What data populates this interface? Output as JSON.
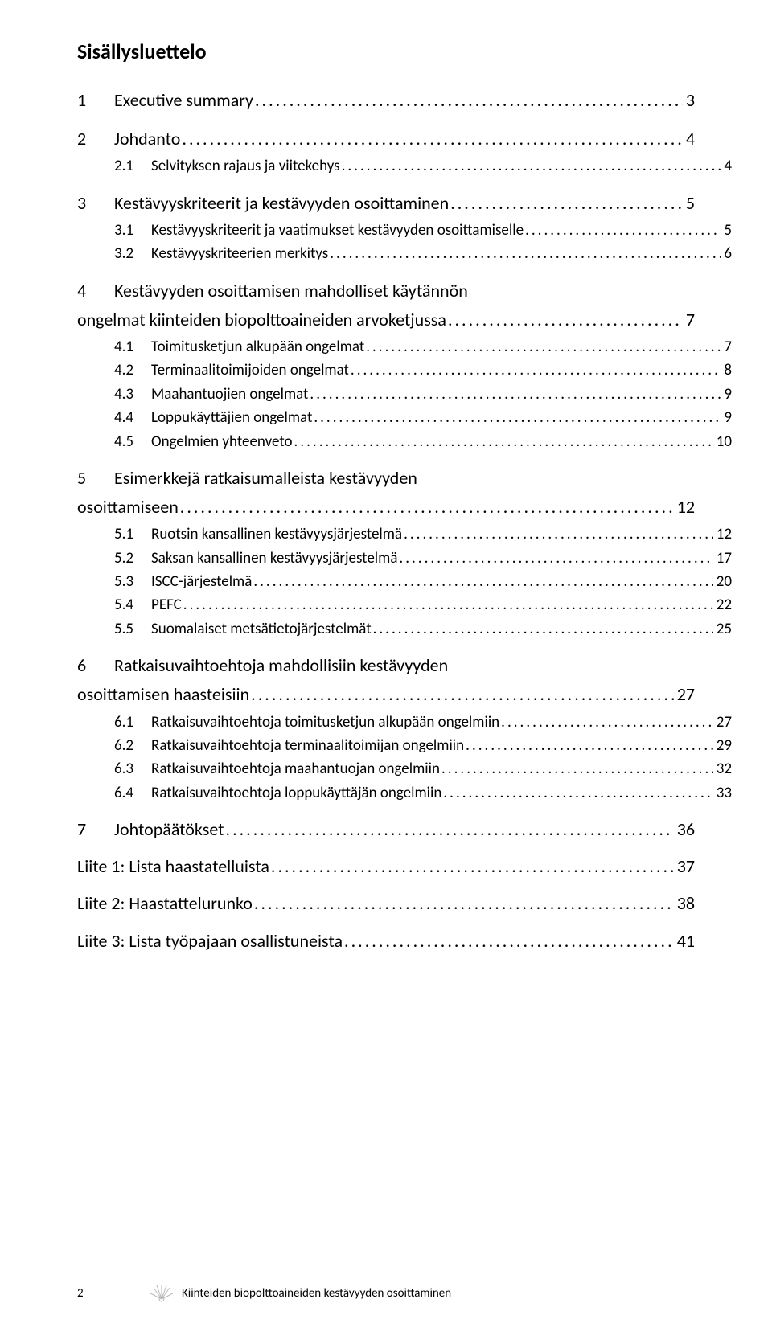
{
  "title": "Sisällysluettelo",
  "entries": [
    {
      "level": 1,
      "num": "1",
      "label": "Executive summary",
      "page": "3"
    },
    {
      "level": 1,
      "num": "2",
      "label": "Johdanto",
      "page": "4"
    },
    {
      "level": 2,
      "num": "2.1",
      "label": "Selvityksen rajaus ja viitekehys",
      "page": "4"
    },
    {
      "level": 1,
      "num": "3",
      "label": "Kestävyyskriteerit ja kestävyyden osoittaminen",
      "page": "5"
    },
    {
      "level": 2,
      "num": "3.1",
      "label": "Kestävyyskriteerit ja vaatimukset kestävyyden osoittamiselle",
      "page": "5"
    },
    {
      "level": 2,
      "num": "3.2",
      "label": "Kestävyyskriteerien merkitys",
      "page": "6"
    },
    {
      "level": 1,
      "num": "4",
      "label": "Kestävyyden osoittamisen mahdolliset käytännön",
      "wrap": "ongelmat kiinteiden biopolttoaineiden arvoketjussa",
      "page": "7"
    },
    {
      "level": 2,
      "num": "4.1",
      "label": "Toimitusketjun alkupään ongelmat",
      "page": "7"
    },
    {
      "level": 2,
      "num": "4.2",
      "label": "Terminaalitoimijoiden ongelmat",
      "page": "8"
    },
    {
      "level": 2,
      "num": "4.3",
      "label": "Maahantuojien ongelmat",
      "page": "9"
    },
    {
      "level": 2,
      "num": "4.4",
      "label": "Loppukäyttäjien ongelmat",
      "page": "9"
    },
    {
      "level": 2,
      "num": "4.5",
      "label": "Ongelmien yhteenveto",
      "page": "10"
    },
    {
      "level": 1,
      "num": "5",
      "label": "Esimerkkejä ratkaisumalleista kestävyyden",
      "wrap": "osoittamiseen",
      "page": "12"
    },
    {
      "level": 2,
      "num": "5.1",
      "label": "Ruotsin kansallinen kestävyysjärjestelmä",
      "page": "12"
    },
    {
      "level": 2,
      "num": "5.2",
      "label": "Saksan kansallinen kestävyysjärjestelmä",
      "page": "17"
    },
    {
      "level": 2,
      "num": "5.3",
      "label": "ISCC-järjestelmä",
      "page": "20"
    },
    {
      "level": 2,
      "num": "5.4",
      "label": "PEFC",
      "page": "22"
    },
    {
      "level": 2,
      "num": "5.5",
      "label": "Suomalaiset metsätietojärjestelmät",
      "page": "25"
    },
    {
      "level": 1,
      "num": "6",
      "label": "Ratkaisuvaihtoehtoja mahdollisiin kestävyyden",
      "wrap": "osoittamisen haasteisiin",
      "page": "27"
    },
    {
      "level": 2,
      "num": "6.1",
      "label": "Ratkaisuvaihtoehtoja toimitusketjun alkupään ongelmiin",
      "page": "27"
    },
    {
      "level": 2,
      "num": "6.2",
      "label": "Ratkaisuvaihtoehtoja terminaalitoimijan ongelmiin",
      "page": "29"
    },
    {
      "level": 2,
      "num": "6.3",
      "label": "Ratkaisuvaihtoehtoja maahantuojan ongelmiin",
      "page": "32"
    },
    {
      "level": 2,
      "num": "6.4",
      "label": "Ratkaisuvaihtoehtoja loppukäyttäjän ongelmiin",
      "page": "33"
    },
    {
      "level": 1,
      "num": "7",
      "label": "Johtopäätökset",
      "page": "36"
    },
    {
      "level": 1,
      "num": "",
      "label": "Liite 1: Lista haastatelluista",
      "page": "37",
      "attach": true
    },
    {
      "level": 1,
      "num": "",
      "label": "Liite 2: Haastattelurunko",
      "page": "38",
      "attach": true
    },
    {
      "level": 1,
      "num": "",
      "label": "Liite 3: Lista työpajaan osallistuneista",
      "page": "41",
      "attach": true
    }
  ],
  "footer": {
    "page_number": "2",
    "text": "Kiinteiden biopolttoaineiden kestävyyden osoittaminen",
    "icon_stroke": "#b9b9b9"
  }
}
